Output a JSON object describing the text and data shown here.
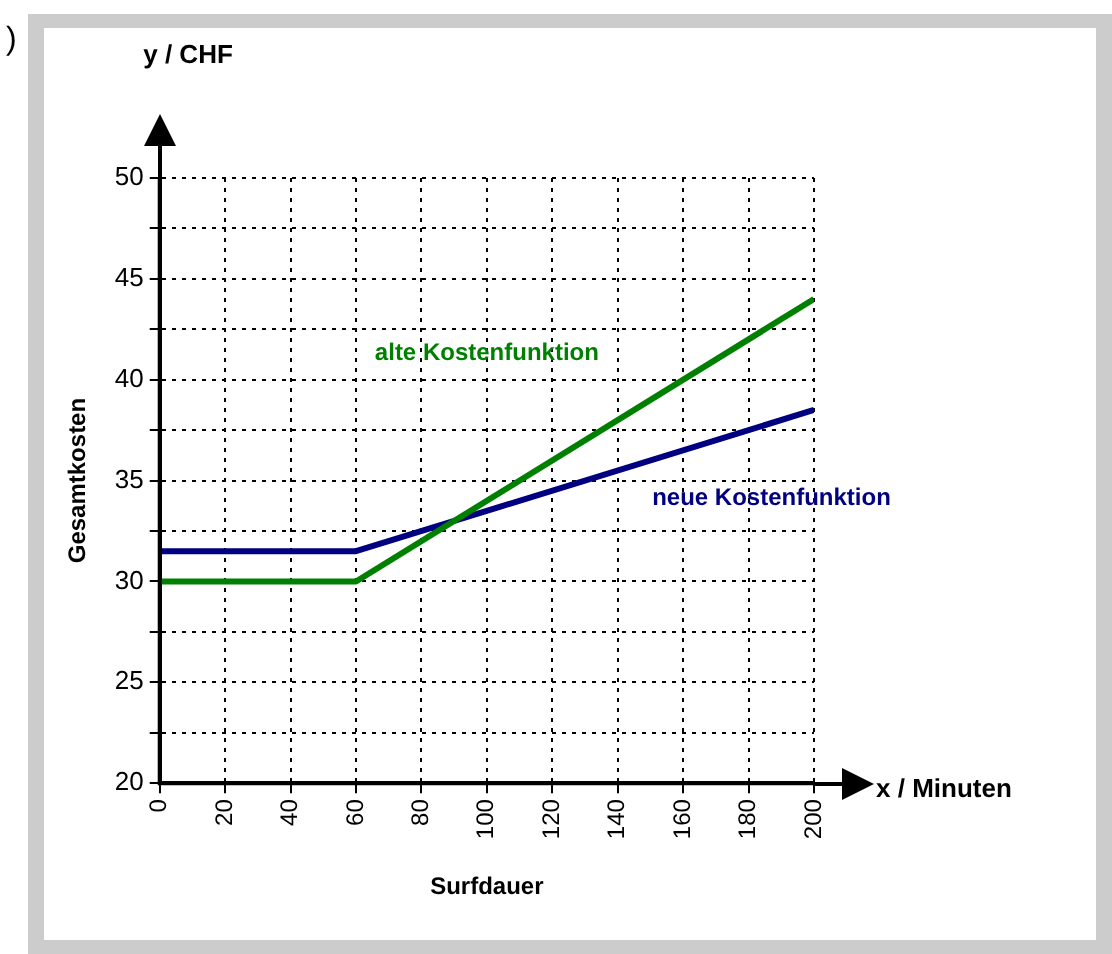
{
  "chart_data": {
    "type": "line",
    "xlabel": "Surfdauer",
    "ylabel": "Gesamtkosten",
    "x": [
      0,
      60,
      200
    ],
    "series": [
      {
        "name": "alte Kostenfunktion",
        "color": "#008000",
        "values": [
          30,
          30,
          44
        ]
      },
      {
        "name": "neue Kostenfunktion",
        "color": "#000080",
        "values": [
          31.5,
          31.5,
          38.5
        ]
      }
    ],
    "xlim": [
      0,
      200
    ],
    "xticks": [
      0,
      20,
      40,
      60,
      80,
      100,
      120,
      140,
      160,
      180,
      200
    ],
    "ylim": [
      20,
      50
    ],
    "yticks": [
      20,
      {
        "value": 22.5,
        "label": null
      },
      25,
      {
        "value": 27.5,
        "label": null
      },
      30,
      {
        "value": 32.5,
        "label": null
      },
      35,
      {
        "value": 37.5,
        "label": null
      },
      40,
      {
        "value": 42.5,
        "label": null
      },
      45,
      {
        "value": 47.5,
        "label": null
      },
      50
    ],
    "grid": true,
    "marker": "none",
    "line_style": "solid",
    "annotations": [
      "y / CHF",
      "x / Minuten",
      ")"
    ]
  }
}
